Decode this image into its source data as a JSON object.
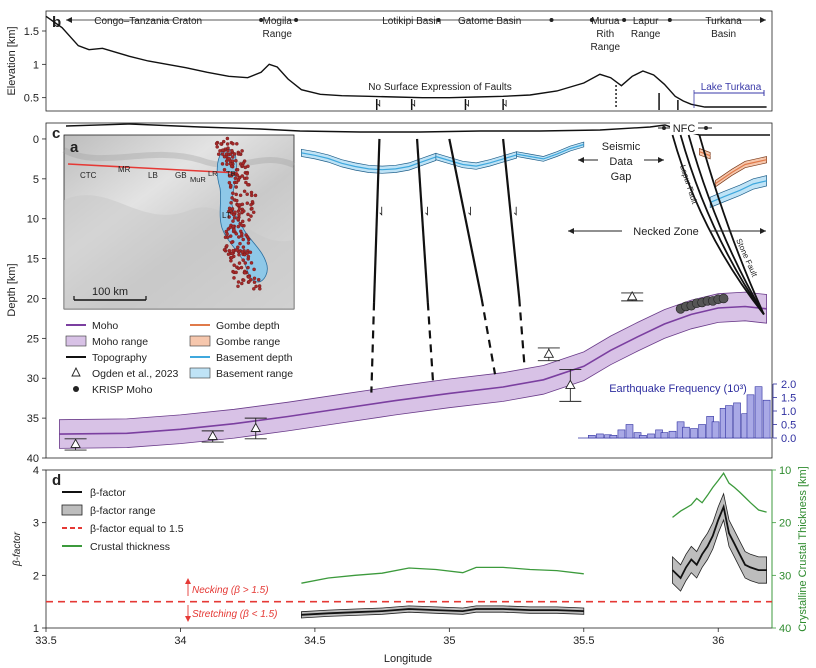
{
  "chart_data": [
    {
      "panel": "b",
      "type": "line",
      "ylabel": "Elevation [km]",
      "xlim": [
        33.5,
        36.2
      ],
      "ylim": [
        0.3,
        1.8
      ],
      "yticks": [
        "0.5",
        "1",
        "1.5"
      ],
      "regions": [
        {
          "label": "Congo–Tanzania Craton",
          "x": 33.88
        },
        {
          "label": "Mogila Range",
          "x": 34.36
        },
        {
          "label": "Lotikipi  Basin",
          "x": 34.86
        },
        {
          "label": "Gatome Basin",
          "x": 35.15
        },
        {
          "label": "Murua Rith Range",
          "x": 35.58
        },
        {
          "label": "Lapur Range",
          "x": 35.73
        },
        {
          "label": "Turkana Basin",
          "x": 36.02
        }
      ],
      "region_dividers": [
        34.3,
        34.43,
        34.96,
        35.38,
        35.53,
        35.65,
        35.82
      ],
      "annotation": "No Surface Expression of Faults",
      "lake_label": "Lake Turkana",
      "series": [
        {
          "x": [
            33.5,
            33.56,
            33.62,
            33.66,
            33.71,
            33.76,
            33.81,
            33.88,
            33.95,
            34.02,
            34.1,
            34.18,
            34.25,
            34.3,
            34.33,
            34.36,
            34.4,
            34.45,
            34.52,
            34.6,
            34.7,
            34.8,
            34.9,
            35.0,
            35.1,
            35.2,
            35.3,
            35.4,
            35.5,
            35.56,
            35.6,
            35.64,
            35.68,
            35.72,
            35.76,
            35.8,
            35.84,
            35.87,
            35.9,
            35.95,
            36.0,
            36.1,
            36.18
          ],
          "y": [
            1.72,
            1.55,
            1.28,
            1.22,
            1.24,
            1.18,
            1.12,
            1.05,
            1.0,
            0.95,
            0.88,
            0.82,
            0.8,
            0.88,
            1.0,
            0.96,
            0.78,
            0.62,
            0.55,
            0.53,
            0.52,
            0.51,
            0.5,
            0.5,
            0.51,
            0.52,
            0.54,
            0.6,
            0.72,
            0.85,
            0.8,
            0.68,
            0.82,
            0.9,
            0.84,
            0.7,
            0.52,
            0.45,
            0.4,
            0.36,
            0.36,
            0.36,
            0.36
          ]
        }
      ]
    },
    {
      "panel": "c",
      "type": "line",
      "ylabel": "Depth [km]",
      "xlim": [
        33.5,
        36.2
      ],
      "ylim": [
        40,
        -2
      ],
      "yticks": [
        "0",
        "5",
        "10",
        "15",
        "20",
        "25",
        "30",
        "35",
        "40"
      ],
      "moho": {
        "x": [
          33.55,
          33.8,
          34.0,
          34.2,
          34.4,
          34.6,
          34.8,
          35.0,
          35.2,
          35.35,
          35.5,
          35.6,
          35.7,
          35.8,
          35.9,
          36.0,
          36.1,
          36.18
        ],
        "y": [
          37.0,
          36.9,
          36.4,
          35.7,
          34.8,
          33.8,
          32.8,
          31.9,
          31.1,
          30.2,
          28.5,
          26.5,
          24.8,
          23.2,
          22.0,
          21.2,
          21.0,
          21.3
        ],
        "range_half_width": 1.8
      },
      "basement_segments": [
        {
          "x": [
            34.45,
            34.5,
            34.55,
            34.6,
            34.65,
            34.7,
            34.75,
            34.8,
            34.85,
            34.9,
            34.95
          ],
          "y": [
            1.3,
            1.6,
            2.0,
            2.6,
            3.0,
            3.3,
            3.4,
            3.3,
            3.0,
            2.4,
            1.8
          ],
          "thickness": 0.9
        },
        {
          "x": [
            34.95,
            35.0,
            35.05,
            35.1,
            35.15,
            35.2,
            35.25
          ],
          "y": [
            1.8,
            2.3,
            2.8,
            3.0,
            2.6,
            2.1,
            1.6
          ],
          "thickness": 0.8
        },
        {
          "x": [
            35.25,
            35.3,
            35.35,
            35.4,
            35.45,
            35.5
          ],
          "y": [
            1.6,
            1.9,
            2.2,
            1.6,
            0.9,
            0.4
          ],
          "thickness": 0.6
        }
      ],
      "gombe_segments": [
        {
          "x": [
            35.93,
            35.97
          ],
          "y": [
            1.2,
            1.7
          ]
        },
        {
          "x": [
            35.99,
            36.05,
            36.1,
            36.18
          ],
          "y": [
            5.2,
            3.8,
            2.8,
            2.2
          ]
        }
      ],
      "basement_east": {
        "x": [
          35.97,
          36.02,
          36.08,
          36.13,
          36.18
        ],
        "y": [
          7.3,
          6.6,
          5.8,
          5.0,
          4.6
        ],
        "thickness": 1.3
      },
      "faults": [
        {
          "x": [
            34.74,
            34.72
          ],
          "y": [
            0,
            20.5
          ]
        },
        {
          "x": [
            34.88,
            34.92
          ],
          "y": [
            0,
            20.5
          ]
        },
        {
          "x": [
            35.0,
            35.12
          ],
          "y": [
            0,
            20.0
          ]
        },
        {
          "x": [
            35.2,
            35.26
          ],
          "y": [
            0,
            20.0
          ]
        }
      ],
      "fault_dashes": [
        {
          "x": [
            34.72,
            34.71
          ],
          "y": [
            20.5,
            31.8
          ]
        },
        {
          "x": [
            34.92,
            34.94
          ],
          "y": [
            20.5,
            30.8
          ]
        },
        {
          "x": [
            35.12,
            35.17
          ],
          "y": [
            20.0,
            29.5
          ]
        },
        {
          "x": [
            35.26,
            35.28
          ],
          "y": [
            20.0,
            28.7
          ]
        }
      ],
      "east_faults": {
        "x_top": [
          35.83,
          35.86,
          35.89,
          35.93
        ],
        "x_bottom": 36.17,
        "y_bottom": 22.0
      },
      "ogden_points": [
        {
          "x": 33.61,
          "y": 38.3,
          "err": 0.7
        },
        {
          "x": 34.12,
          "y": 37.3,
          "err": 0.7
        },
        {
          "x": 34.28,
          "y": 36.3,
          "err": 1.3
        },
        {
          "x": 35.37,
          "y": 27.0,
          "err": 0.8
        },
        {
          "x": 35.45,
          "y": 30.9,
          "err": 2.0
        },
        {
          "x": 35.68,
          "y": 19.8,
          "err": 0.5
        }
      ],
      "krisp_moho": {
        "x": [
          35.86,
          35.88,
          35.9,
          35.92,
          35.94,
          35.96,
          35.98,
          36.0,
          36.02
        ],
        "y": [
          21.3,
          21.0,
          20.9,
          20.6,
          20.5,
          20.3,
          20.3,
          20.1,
          20.0
        ]
      },
      "labels": {
        "seismic_gap": [
          "Seismic",
          "Data",
          "Gap"
        ],
        "necked_zone": "Necked Zone",
        "nfc": "NFC",
        "lapur_fault": "Lapur Fault",
        "stone_fault": "Stone Fault"
      },
      "legend": [
        {
          "label": "Moho",
          "color": "#7b3fa0",
          "kind": "line"
        },
        {
          "label": "Moho range",
          "color": "#d8c2e6",
          "kind": "box"
        },
        {
          "label": "Topography",
          "color": "#111111",
          "kind": "line"
        },
        {
          "label": "Ogden et al., 2023",
          "color": "#222222",
          "kind": "tri"
        },
        {
          "label": "KRISP Moho",
          "color": "#222222",
          "kind": "dot"
        },
        {
          "label": "Gombe depth",
          "color": "#e07a4a",
          "kind": "line"
        },
        {
          "label": "Gombe range",
          "color": "#f6c7ad",
          "kind": "box"
        },
        {
          "label": "Basement depth",
          "color": "#3fa8dd",
          "kind": "line"
        },
        {
          "label": "Basement range",
          "color": "#bfe3f6",
          "kind": "box"
        }
      ],
      "earthquake": {
        "title": "Earthquake Frequency (10³)",
        "yticks": [
          "0.0",
          "0.5",
          "1.0",
          "1.5",
          "2.0"
        ],
        "x": [
          35.53,
          35.56,
          35.59,
          35.61,
          35.64,
          35.67,
          35.7,
          35.72,
          35.75,
          35.78,
          35.8,
          35.83,
          35.86,
          35.88,
          35.91,
          35.94,
          35.97,
          35.99,
          36.02,
          36.04,
          36.07,
          36.1,
          36.12,
          36.15,
          36.18
        ],
        "values": [
          0.1,
          0.15,
          0.12,
          0.1,
          0.3,
          0.5,
          0.2,
          0.1,
          0.15,
          0.3,
          0.2,
          0.25,
          0.6,
          0.4,
          0.35,
          0.5,
          0.8,
          0.6,
          1.1,
          1.2,
          1.3,
          0.9,
          1.6,
          1.9,
          1.4
        ]
      }
    },
    {
      "panel": "a",
      "type": "map",
      "labels": [
        "CTC",
        "MR",
        "LB",
        "GB",
        "MuR",
        "LR",
        "TB",
        "LT"
      ],
      "scale_label": "100 km"
    },
    {
      "panel": "d",
      "type": "line",
      "xlabel": "Longitude",
      "ylabel": "β-factor",
      "ylabel_right": "Crystalline Crustal Thickness [km]",
      "xlim": [
        33.5,
        36.2
      ],
      "ylim": [
        1,
        4
      ],
      "ylim_right": [
        40,
        10
      ],
      "xticks": [
        "33.5",
        "34",
        "34.5",
        "35",
        "35.5",
        "36"
      ],
      "yticks": [
        "1",
        "2",
        "3",
        "4"
      ],
      "yticks_right": [
        "10",
        "20",
        "30",
        "40"
      ],
      "threshold": 1.5,
      "labels": {
        "necking": "Necking (β > 1.5)",
        "stretching": "Stretching (β < 1.5)"
      },
      "legend": [
        {
          "label": "β-factor",
          "color": "#111111",
          "kind": "line"
        },
        {
          "label": "β-factor range",
          "color": "#bdbdbd",
          "kind": "box"
        },
        {
          "label": "β-factor equal to 1.5",
          "color": "#e53935",
          "kind": "dash"
        },
        {
          "label": "Crustal thickness",
          "color": "#3c9a3c",
          "kind": "line"
        }
      ],
      "series": [
        {
          "x": [
            34.45,
            34.55,
            34.65,
            34.75,
            34.85,
            34.95,
            35.05,
            35.1,
            35.2,
            35.3,
            35.4,
            35.5
          ],
          "y": [
            1.25,
            1.28,
            1.3,
            1.32,
            1.36,
            1.34,
            1.32,
            1.36,
            1.36,
            1.34,
            1.34,
            1.32
          ],
          "range_half_width": 0.06,
          "thickness_km": [
            31.5,
            30.5,
            30.0,
            29.6,
            28.6,
            28.9,
            29.5,
            28.5,
            28.5,
            28.9,
            29.1,
            29.7
          ]
        },
        {
          "x": [
            35.83,
            35.86,
            35.88,
            35.9,
            35.92,
            35.94,
            35.96,
            35.98,
            36.0,
            36.02,
            36.04,
            36.06,
            36.08,
            36.1,
            36.12,
            36.15,
            36.18
          ],
          "y": [
            2.1,
            1.95,
            2.15,
            2.3,
            2.2,
            2.4,
            2.55,
            2.75,
            3.05,
            3.3,
            2.8,
            2.6,
            2.4,
            2.2,
            2.15,
            2.1,
            2.1
          ],
          "range_half_width": 0.25,
          "thickness_km": [
            19.0,
            17.8,
            17.2,
            16.6,
            15.4,
            16.2,
            14.8,
            13.3,
            12.0,
            10.6,
            12.5,
            13.3,
            14.2,
            15.2,
            16.2,
            17.6,
            18.0
          ]
        }
      ]
    }
  ]
}
